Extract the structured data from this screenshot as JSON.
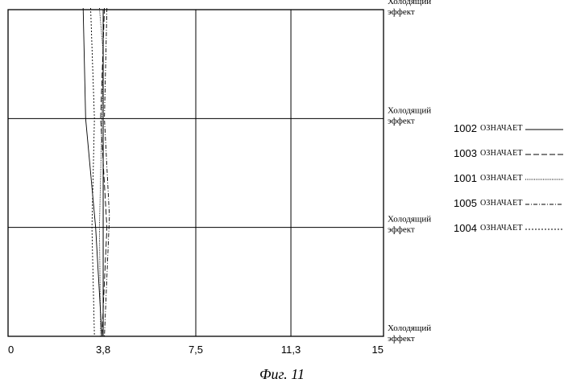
{
  "chart_data": {
    "type": "line",
    "xlim": [
      0,
      15
    ],
    "x_tick_labels": [
      {
        "value": 0,
        "label": "0"
      },
      {
        "value": 3.8,
        "label": "3,8"
      },
      {
        "value": 7.5,
        "label": "7,5"
      },
      {
        "value": 11.3,
        "label": "11,3"
      },
      {
        "value": 15,
        "label": "15"
      }
    ],
    "y_levels": 4,
    "y_tick_labels": [
      {
        "level": 3,
        "lines": [
          "Холодящий",
          "эффект"
        ]
      },
      {
        "level": 2,
        "lines": [
          "Холодящий",
          "эффект"
        ]
      },
      {
        "level": 1,
        "lines": [
          "Холодящий",
          "эффект"
        ]
      },
      {
        "level": 0,
        "lines": [
          "Холодящий",
          "эффект"
        ]
      }
    ],
    "grid": true,
    "legend_position": "right",
    "series": [
      {
        "name": "1002",
        "label": "1002 ОЗНАЧАЕТ",
        "dash": "solid",
        "points": [
          [
            3.0,
            3.1
          ],
          [
            3.1,
            2.0
          ],
          [
            3.5,
            1.0
          ],
          [
            3.75,
            0.0
          ]
        ]
      },
      {
        "name": "1003",
        "label": "1003 ОЗНАЧАЕТ",
        "dash": "long-dash",
        "points": [
          [
            3.85,
            3.1
          ],
          [
            3.7,
            2.0
          ],
          [
            3.95,
            1.0
          ],
          [
            3.75,
            0.0
          ]
        ]
      },
      {
        "name": "1001",
        "label": "1001 ОЗНАЧАЕТ",
        "dash": "fine-dot",
        "points": [
          [
            3.65,
            3.1
          ],
          [
            3.8,
            2.6
          ],
          [
            3.75,
            2.0
          ],
          [
            3.65,
            1.0
          ],
          [
            3.7,
            0.0
          ]
        ]
      },
      {
        "name": "1005",
        "label": "1005 ОЗНАЧАЕТ",
        "dash": "dash-dot",
        "points": [
          [
            3.95,
            3.1
          ],
          [
            3.85,
            2.0
          ],
          [
            4.05,
            1.1
          ],
          [
            3.85,
            0.0
          ]
        ]
      },
      {
        "name": "1004",
        "label": "1004 ОЗНАЧАЕТ",
        "dash": "dotted",
        "points": [
          [
            3.3,
            3.1
          ],
          [
            3.45,
            2.0
          ],
          [
            3.35,
            1.0
          ],
          [
            3.45,
            0.0
          ]
        ]
      }
    ]
  },
  "legend": {
    "word": "ОЗНАЧАЕТ"
  },
  "caption": "Фиг. 11"
}
